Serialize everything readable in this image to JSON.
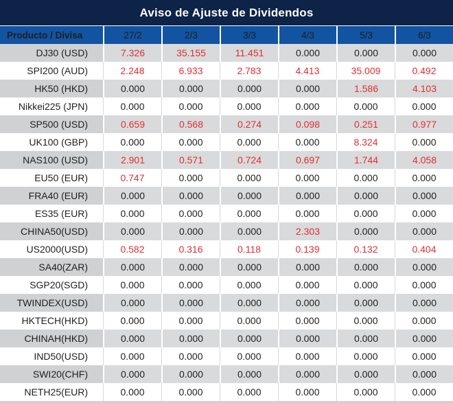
{
  "title": "Aviso de Ajuste de Dividendos",
  "columns": [
    "Producto / Divisa",
    "27/2",
    "2/3",
    "3/3",
    "4/3",
    "5/3",
    "6/3"
  ],
  "rows": [
    {
      "product": "DJ30 (USD)",
      "values": [
        "7.326",
        "35.155",
        "11.451",
        "0.000",
        "0.000",
        "0.000"
      ],
      "red": [
        true,
        true,
        true,
        false,
        false,
        false
      ]
    },
    {
      "product": "SPI200 (AUD)",
      "values": [
        "2.248",
        "6.933",
        "2.783",
        "4.413",
        "35.009",
        "0.492"
      ],
      "red": [
        true,
        true,
        true,
        true,
        true,
        true
      ]
    },
    {
      "product": "HK50 (HKD)",
      "values": [
        "0.000",
        "0.000",
        "0.000",
        "0.000",
        "1.586",
        "4.103"
      ],
      "red": [
        false,
        false,
        false,
        false,
        true,
        true
      ]
    },
    {
      "product": "Nikkei225 (JPN)",
      "values": [
        "0.000",
        "0.000",
        "0.000",
        "0.000",
        "0.000",
        "0.000"
      ],
      "red": [
        false,
        false,
        false,
        false,
        false,
        false
      ]
    },
    {
      "product": "SP500 (USD)",
      "values": [
        "0.659",
        "0.568",
        "0.274",
        "0.098",
        "0.251",
        "0.977"
      ],
      "red": [
        true,
        true,
        true,
        true,
        true,
        true
      ]
    },
    {
      "product": "UK100 (GBP)",
      "values": [
        "0.000",
        "0.000",
        "0.000",
        "0.000",
        "8.324",
        "0.000"
      ],
      "red": [
        false,
        false,
        false,
        false,
        true,
        false
      ]
    },
    {
      "product": "NAS100 (USD)",
      "values": [
        "2.901",
        "0.571",
        "0.724",
        "0.697",
        "1.744",
        "4.058"
      ],
      "red": [
        true,
        true,
        true,
        true,
        true,
        true
      ]
    },
    {
      "product": "EU50 (EUR)",
      "values": [
        "0.747",
        "0.000",
        "0.000",
        "0.000",
        "0.000",
        "0.000"
      ],
      "red": [
        true,
        false,
        false,
        false,
        false,
        false
      ]
    },
    {
      "product": "FRA40 (EUR)",
      "values": [
        "0.000",
        "0.000",
        "0.000",
        "0.000",
        "0.000",
        "0.000"
      ],
      "red": [
        false,
        false,
        false,
        false,
        false,
        false
      ]
    },
    {
      "product": "ES35 (EUR)",
      "values": [
        "0.000",
        "0.000",
        "0.000",
        "0.000",
        "0.000",
        "0.000"
      ],
      "red": [
        false,
        false,
        false,
        false,
        false,
        false
      ]
    },
    {
      "product": "CHINA50(USD)",
      "values": [
        "0.000",
        "0.000",
        "0.000",
        "2.303",
        "0.000",
        "0.000"
      ],
      "red": [
        false,
        false,
        false,
        true,
        false,
        false
      ]
    },
    {
      "product": "US2000(USD)",
      "values": [
        "0.582",
        "0.316",
        "0.118",
        "0.139",
        "0.132",
        "0.404"
      ],
      "red": [
        true,
        true,
        true,
        true,
        true,
        true
      ]
    },
    {
      "product": "SA40(ZAR)",
      "values": [
        "0.000",
        "0.000",
        "0.000",
        "0.000",
        "0.000",
        "0.000"
      ],
      "red": [
        false,
        false,
        false,
        false,
        false,
        false
      ]
    },
    {
      "product": "SGP20(SGD)",
      "values": [
        "0.000",
        "0.000",
        "0.000",
        "0.000",
        "0.000",
        "0.000"
      ],
      "red": [
        false,
        false,
        false,
        false,
        false,
        false
      ]
    },
    {
      "product": "TWINDEX(USD)",
      "values": [
        "0.000",
        "0.000",
        "0.000",
        "0.000",
        "0.000",
        "0.000"
      ],
      "red": [
        false,
        false,
        false,
        false,
        false,
        false
      ]
    },
    {
      "product": "HKTECH(HKD)",
      "values": [
        "0.000",
        "0.000",
        "0.000",
        "0.000",
        "0.000",
        "0.000"
      ],
      "red": [
        false,
        false,
        false,
        false,
        false,
        false
      ]
    },
    {
      "product": "CHINAH(HKD)",
      "values": [
        "0.000",
        "0.000",
        "0.000",
        "0.000",
        "0.000",
        "0.000"
      ],
      "red": [
        false,
        false,
        false,
        false,
        false,
        false
      ]
    },
    {
      "product": "IND50(USD)",
      "values": [
        "0.000",
        "0.000",
        "0.000",
        "0.000",
        "0.000",
        "0.000"
      ],
      "red": [
        false,
        false,
        false,
        false,
        false,
        false
      ]
    },
    {
      "product": "SWI20(CHF)",
      "values": [
        "0.000",
        "0.000",
        "0.000",
        "0.000",
        "0.000",
        "0.000"
      ],
      "red": [
        false,
        false,
        false,
        false,
        false,
        false
      ]
    },
    {
      "product": "NETH25(EUR)",
      "values": [
        "0.000",
        "0.000",
        "0.000",
        "0.000",
        "0.000",
        "0.000"
      ],
      "red": [
        false,
        false,
        false,
        false,
        false,
        false
      ]
    }
  ],
  "colors": {
    "navy": "#0d2347",
    "headerblue": "#1253a2",
    "grayRowBg": "#d9dadb",
    "grayProductBg": "#cfd1d2",
    "red": "#e02e35",
    "ink": "#1f1f1f",
    "whiteRowBorder": "#d9d9d9"
  }
}
